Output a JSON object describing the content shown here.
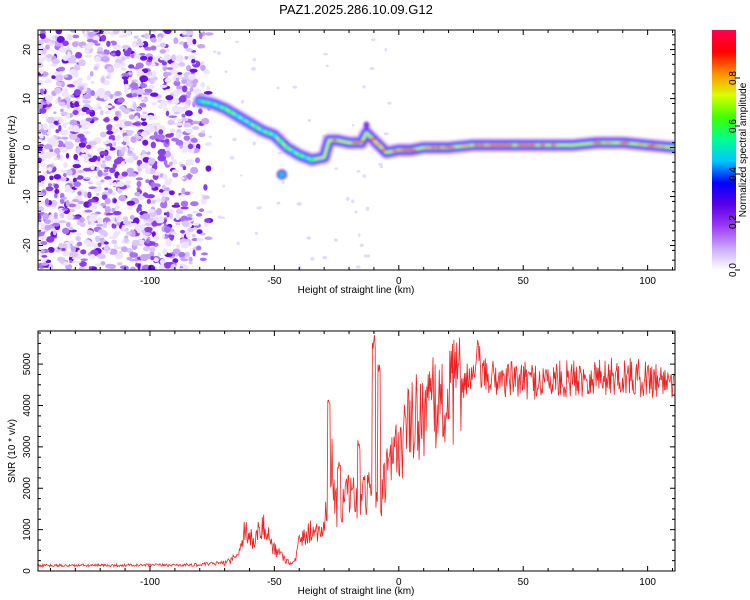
{
  "title": "PAZ1.2025.286.10.09.G12",
  "chart_data": [
    {
      "type": "heatmap",
      "name": "spectrogram",
      "title": "PAZ1.2025.286.10.09.G12",
      "xlabel": "Height of straight line (km)",
      "ylabel": "Frequency (Hz)",
      "xlim": [
        -145,
        111
      ],
      "ylim": [
        -25,
        24
      ],
      "xticks": [
        -100,
        -50,
        0,
        50,
        100
      ],
      "xtick_labels": [
        "-100",
        "-50",
        "0",
        "50",
        "100"
      ],
      "yticks": [
        -20,
        -10,
        0,
        10,
        20
      ],
      "ytick_labels": [
        "-20",
        "-10",
        "0",
        "10",
        "20"
      ],
      "ridge": {
        "x": [
          -80,
          -75,
          -70,
          -65,
          -60,
          -55,
          -50,
          -45,
          -40,
          -35,
          -30,
          -28,
          -25,
          -20,
          -15,
          -13,
          -10,
          -5,
          0,
          5,
          10,
          20,
          30,
          40,
          50,
          60,
          70,
          80,
          90,
          100,
          111
        ],
        "y": [
          9.5,
          9,
          8,
          6.5,
          5,
          3.5,
          2.5,
          0,
          -1.5,
          -2.5,
          -2,
          1.5,
          1.5,
          1,
          1,
          3,
          1.5,
          -1,
          -0.5,
          -0.5,
          0,
          0,
          0.5,
          0.5,
          0.5,
          0.5,
          0.5,
          1,
          1,
          0.5,
          0
        ]
      },
      "noise_region_x": [
        -145,
        -82
      ],
      "colorbar": {
        "label": "Normalized spectral amplitude",
        "range": [
          0,
          1
        ],
        "ticks": [
          0.0,
          0.2,
          0.4,
          0.6,
          0.8
        ],
        "tick_labels": [
          "0.0",
          "0.2",
          "0.4",
          "0.6",
          "0.8"
        ],
        "colors": [
          "#ffffff",
          "#c9a8ff",
          "#9b3bf5",
          "#5a00e6",
          "#0000ff",
          "#00c8ff",
          "#00ff90",
          "#40ff00",
          "#d8ff00",
          "#ff9000",
          "#ff0000",
          "#ff0050"
        ]
      }
    },
    {
      "type": "line",
      "name": "snr",
      "xlabel": "Height of straight line (km)",
      "ylabel": "SNR (10 * v/v)",
      "xlim": [
        -145,
        111
      ],
      "ylim": [
        0,
        5800
      ],
      "xticks": [
        -100,
        -50,
        0,
        50,
        100
      ],
      "xtick_labels": [
        "-100",
        "-50",
        "0",
        "50",
        "100"
      ],
      "yticks": [
        0,
        1000,
        2000,
        3000,
        4000,
        5000
      ],
      "ytick_labels": [
        "0",
        "1000",
        "2000",
        "3000",
        "4000",
        "5000"
      ],
      "color": "#ee2222",
      "envelope": {
        "x": [
          -145,
          -100,
          -80,
          -70,
          -65,
          -62,
          -58,
          -55,
          -50,
          -45,
          -42,
          -40,
          -35,
          -30,
          -27,
          -25,
          -20,
          -15,
          -10,
          -8,
          -5,
          0,
          5,
          10,
          15,
          20,
          25,
          30,
          40,
          50,
          60,
          70,
          80,
          90,
          100,
          111
        ],
        "y": [
          130,
          140,
          150,
          200,
          350,
          1000,
          700,
          1100,
          550,
          250,
          180,
          700,
          1000,
          1000,
          2700,
          1500,
          1800,
          1700,
          2000,
          1400,
          2300,
          3000,
          3600,
          3900,
          4000,
          4100,
          4600,
          4700,
          4650,
          4600,
          4600,
          4650,
          4700,
          4700,
          4650,
          4600
        ]
      },
      "spikes": [
        {
          "x": -28,
          "y": 4300
        },
        {
          "x": -24,
          "y": 2700
        },
        {
          "x": -16,
          "y": 3200
        },
        {
          "x": -10,
          "y": 5800
        },
        {
          "x": -8,
          "y": 5000
        },
        {
          "x": 32,
          "y": 5600
        }
      ]
    }
  ]
}
